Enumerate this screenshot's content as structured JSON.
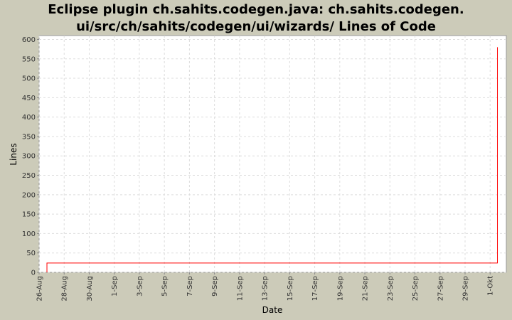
{
  "chart_data": {
    "type": "line",
    "title_lines": [
      "Eclipse plugin ch.sahits.codegen.java: ch.sahits.codegen.",
      "ui/src/ch/sahits/codegen/ui/wizards/ Lines of Code"
    ],
    "xlabel": "Date",
    "ylabel": "Lines",
    "ylim": [
      0,
      610
    ],
    "yticks": [
      0,
      50,
      100,
      150,
      200,
      250,
      300,
      350,
      400,
      450,
      500,
      550,
      600
    ],
    "xticks": [
      "26-Aug",
      "28-Aug",
      "30-Aug",
      "1-Sep",
      "3-Sep",
      "5-Sep",
      "7-Sep",
      "9-Sep",
      "11-Sep",
      "13-Sep",
      "15-Sep",
      "17-Sep",
      "19-Sep",
      "21-Sep",
      "23-Sep",
      "25-Sep",
      "27-Sep",
      "29-Sep",
      "1-Okt"
    ],
    "xlim": [
      "08-26 00:00",
      "10-02 07:00"
    ],
    "grid": true,
    "step": true,
    "series": [
      {
        "color": "#ff0000",
        "points": [
          {
            "x": "08-26 15:00",
            "y": 0
          },
          {
            "x": "08-26 15:00",
            "y": 24
          },
          {
            "x": "10-01 14:00",
            "y": 24
          },
          {
            "x": "10-01 14:00",
            "y": 580
          }
        ]
      }
    ]
  }
}
